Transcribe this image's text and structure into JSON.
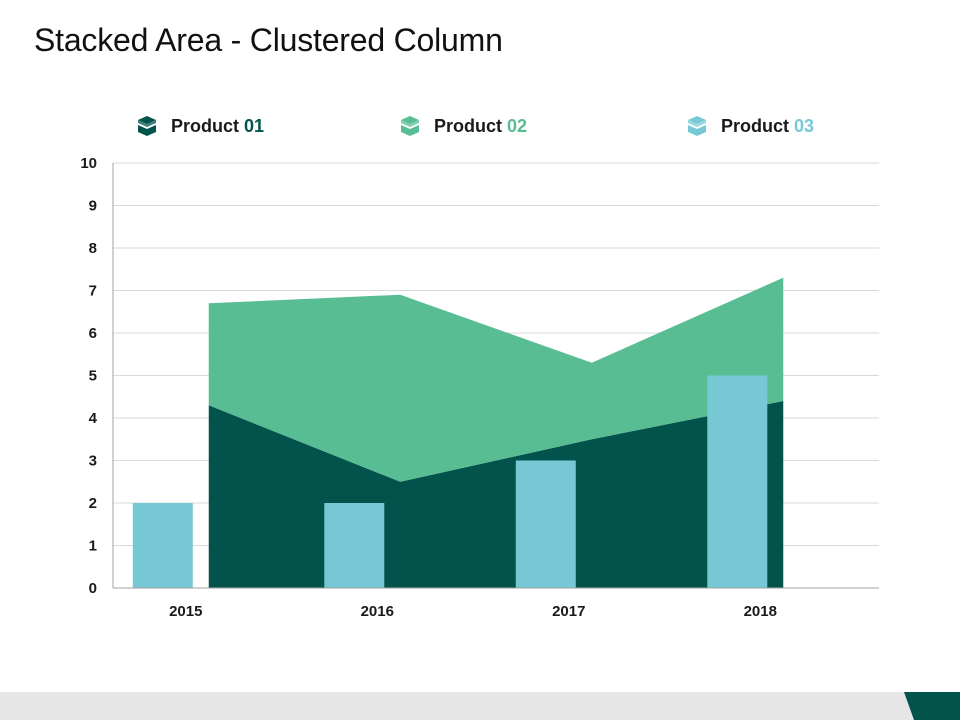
{
  "title": "Stacked Area - Clustered Column",
  "colors": {
    "product1": "#03534D",
    "product2": "#58BD93",
    "product3": "#76C9D4",
    "axis": "#a0a0a0",
    "grid": "#d9d9d9",
    "footer_accent": "#03534D"
  },
  "legend": [
    {
      "prefix": "Product",
      "number": "01",
      "icon": "open-box-icon",
      "color": "#03534D"
    },
    {
      "prefix": "Product",
      "number": "02",
      "icon": "open-box-icon",
      "color": "#58BD93"
    },
    {
      "prefix": "Product",
      "number": "03",
      "icon": "open-box-icon",
      "color": "#76C9D4"
    }
  ],
  "chart_data": {
    "type": "area+bar",
    "title": "Stacked Area - Clustered Column",
    "categories": [
      "2015",
      "2016",
      "2017",
      "2018"
    ],
    "ylim": [
      0,
      10
    ],
    "yticks": [
      "0",
      "1",
      "2",
      "3",
      "4",
      "5",
      "6",
      "7",
      "8",
      "9",
      "10"
    ],
    "grid": true,
    "legend_position": "top",
    "series": [
      {
        "name": "Product 01",
        "type": "stacked-area",
        "values": [
          4.3,
          2.5,
          3.5,
          4.4
        ]
      },
      {
        "name": "Product 02",
        "type": "stacked-area",
        "values": [
          2.4,
          4.4,
          1.8,
          2.9
        ]
      },
      {
        "name": "Product 03",
        "type": "column",
        "values": [
          2,
          2,
          3,
          5
        ]
      }
    ]
  }
}
